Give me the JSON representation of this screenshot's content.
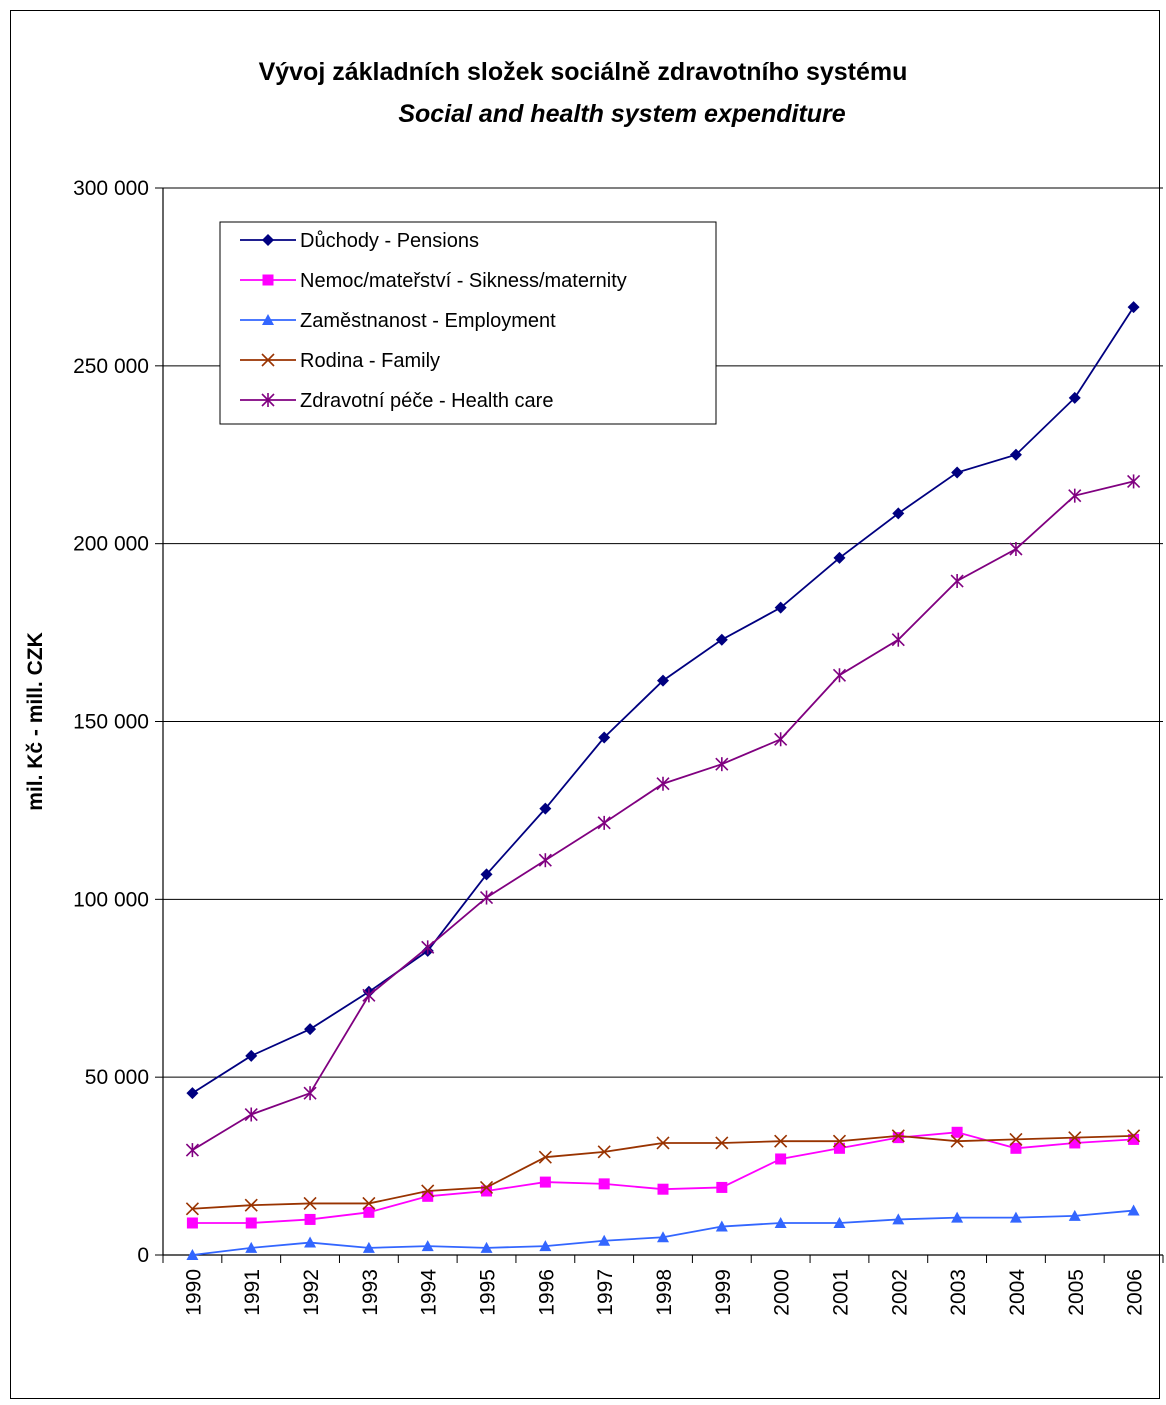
{
  "chart_data": {
    "type": "line",
    "title": "Vývoj základních složek sociálně zdravotního systému",
    "subtitle": "Social and health system expenditure",
    "ylabel": "mil. Kč - mill. CZK",
    "xlabel": "",
    "ylim": [
      0,
      300000
    ],
    "yticks": [
      0,
      50000,
      100000,
      150000,
      200000,
      250000,
      300000
    ],
    "ytick_labels": [
      "0",
      "50 000",
      "100 000",
      "150 000",
      "200 000",
      "250 000",
      "300 000"
    ],
    "grid": true,
    "legend_position": "top-left",
    "categories": [
      "1990",
      "1991",
      "1992",
      "1993",
      "1994",
      "1995",
      "1996",
      "1997",
      "1998",
      "1999",
      "2000",
      "2001",
      "2002",
      "2003",
      "2004",
      "2005",
      "2006"
    ],
    "series": [
      {
        "name": "Důchody - Pensions",
        "color": "#000080",
        "marker": "diamond",
        "values": [
          45500,
          56000,
          63500,
          74000,
          85500,
          107000,
          125500,
          145500,
          161500,
          173000,
          182000,
          196000,
          208500,
          220000,
          225000,
          241000,
          266500
        ]
      },
      {
        "name": "Nemoc/mateřství - Sikness/maternity",
        "color": "#FF00FF",
        "marker": "square",
        "values": [
          9000,
          9000,
          10000,
          12000,
          16500,
          18000,
          20500,
          20000,
          18500,
          19000,
          27000,
          30000,
          33000,
          34500,
          30000,
          31500,
          32500
        ]
      },
      {
        "name": "Zaměstnanost - Employment",
        "color": "#3366FF",
        "marker": "triangle",
        "values": [
          0,
          2000,
          3500,
          2000,
          2500,
          2000,
          2500,
          4000,
          5000,
          8000,
          9000,
          9000,
          10000,
          10500,
          10500,
          11000,
          12500
        ]
      },
      {
        "name": "Rodina - Family",
        "color": "#993300",
        "marker": "x",
        "values": [
          13000,
          14000,
          14500,
          14500,
          18000,
          19000,
          27500,
          29000,
          31500,
          31500,
          32000,
          32000,
          33500,
          32000,
          32500,
          33000,
          33500
        ]
      },
      {
        "name": "Zdravotní péče - Health care",
        "color": "#800080",
        "marker": "star",
        "values": [
          29500,
          39500,
          45500,
          73000,
          86500,
          100500,
          111000,
          121500,
          132500,
          138000,
          145000,
          163000,
          173000,
          189500,
          198500,
          213500,
          217500
        ]
      }
    ]
  }
}
